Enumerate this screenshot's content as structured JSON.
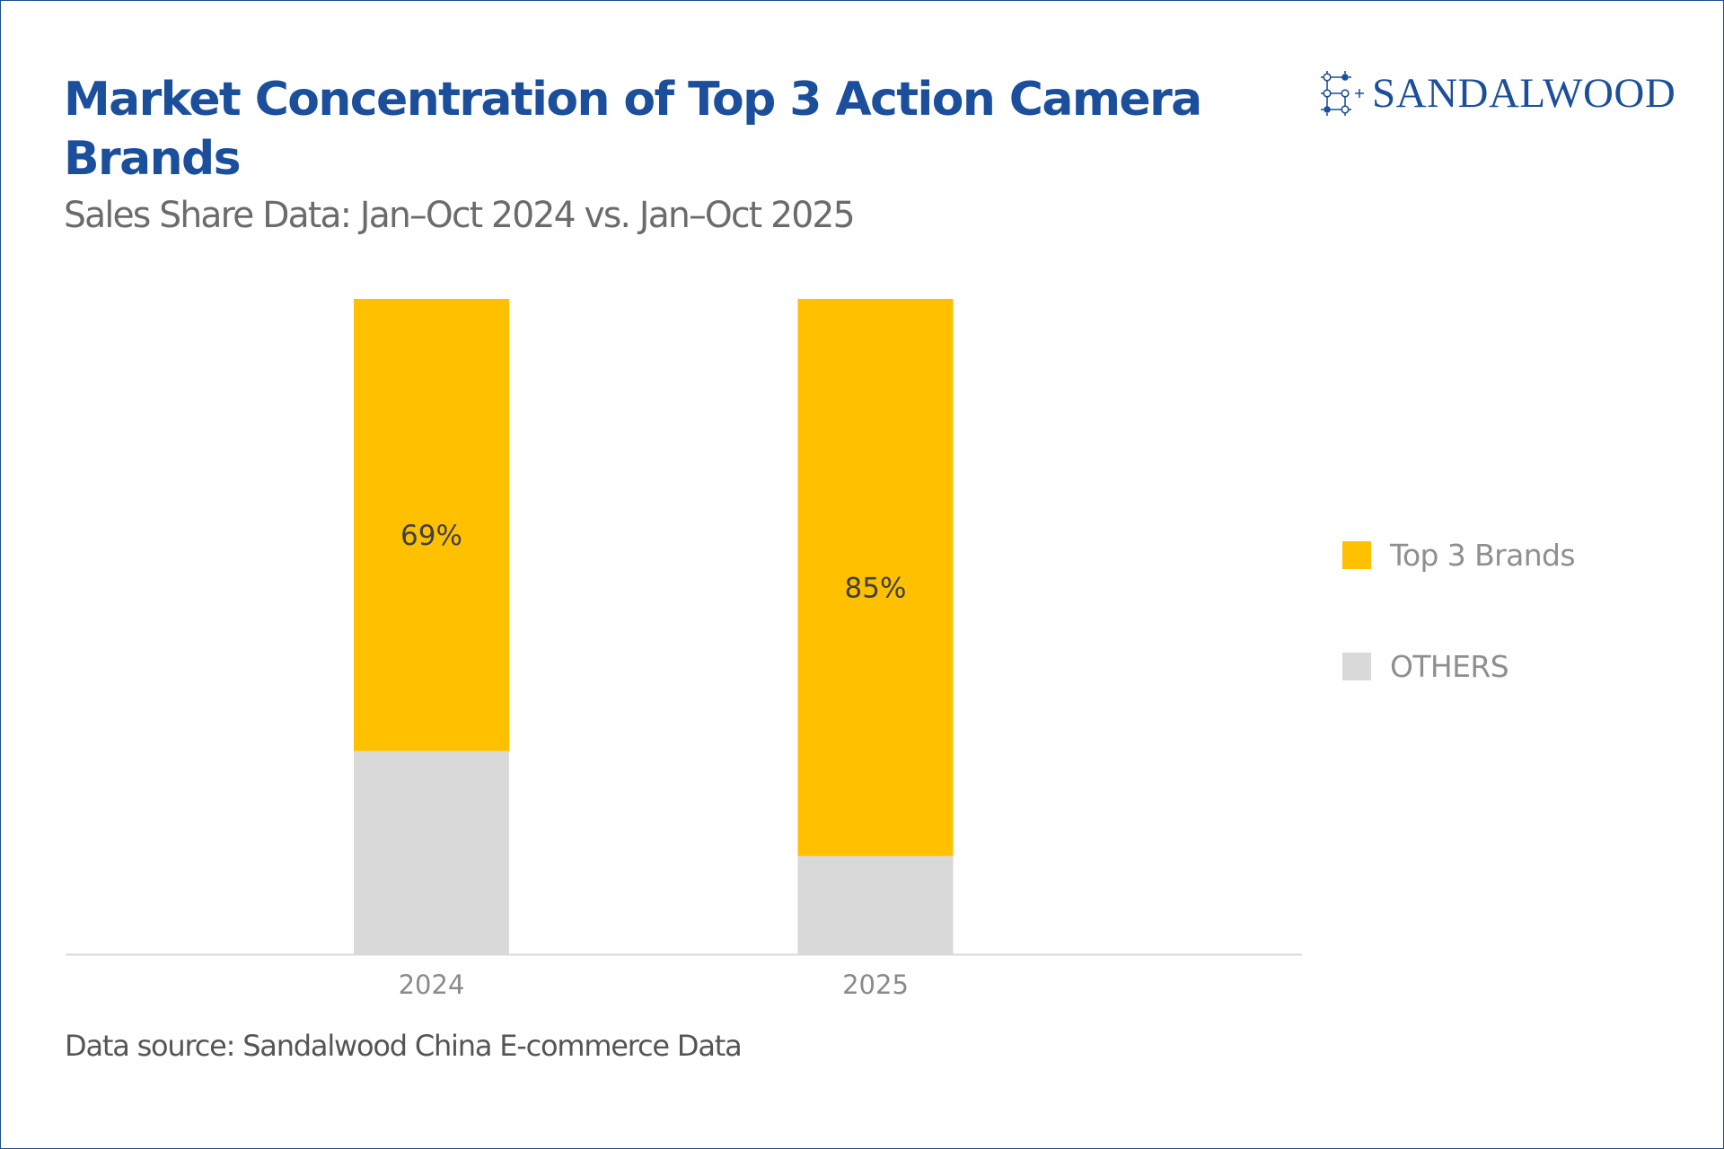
{
  "header": {
    "title": "Market Concentration of Top 3 Action Camera Brands",
    "subtitle": "Sales Share Data: Jan–Oct 2024 vs. Jan–Oct 2025"
  },
  "brand": {
    "logo_text": "SANDALWOOD",
    "logo_icon": "sandalwood-grid-icon",
    "color": "#1b4f9c"
  },
  "footer": {
    "source": "Data source: Sandalwood China E-commerce Data"
  },
  "chart_data": {
    "type": "bar",
    "stacked": true,
    "title": "Market Concentration of Top 3 Action Camera Brands",
    "subtitle": "Sales Share Data: Jan–Oct 2024 vs. Jan–Oct 2025",
    "xlabel": "",
    "ylabel": "",
    "categories": [
      "2024",
      "2025"
    ],
    "series": [
      {
        "name": "OTHERS",
        "values": [
          31,
          15
        ],
        "color": "#d9d9d9",
        "show_labels": false
      },
      {
        "name": "Top 3 Brands",
        "values": [
          69,
          85
        ],
        "color": "#ffc000",
        "show_labels": true
      }
    ],
    "data_labels": [
      "69%",
      "85%"
    ],
    "ylim": [
      0,
      100
    ],
    "y_axis_visible": false,
    "grid": false,
    "legend": {
      "position": "right",
      "entries": [
        {
          "label": "Top 3 Brands",
          "color": "#ffc000"
        },
        {
          "label": "OTHERS",
          "color": "#d9d9d9"
        }
      ]
    },
    "axis_color": "#d9d9d9",
    "tick_label_color": "#8a8a8a",
    "data_label_color": "#404040"
  }
}
